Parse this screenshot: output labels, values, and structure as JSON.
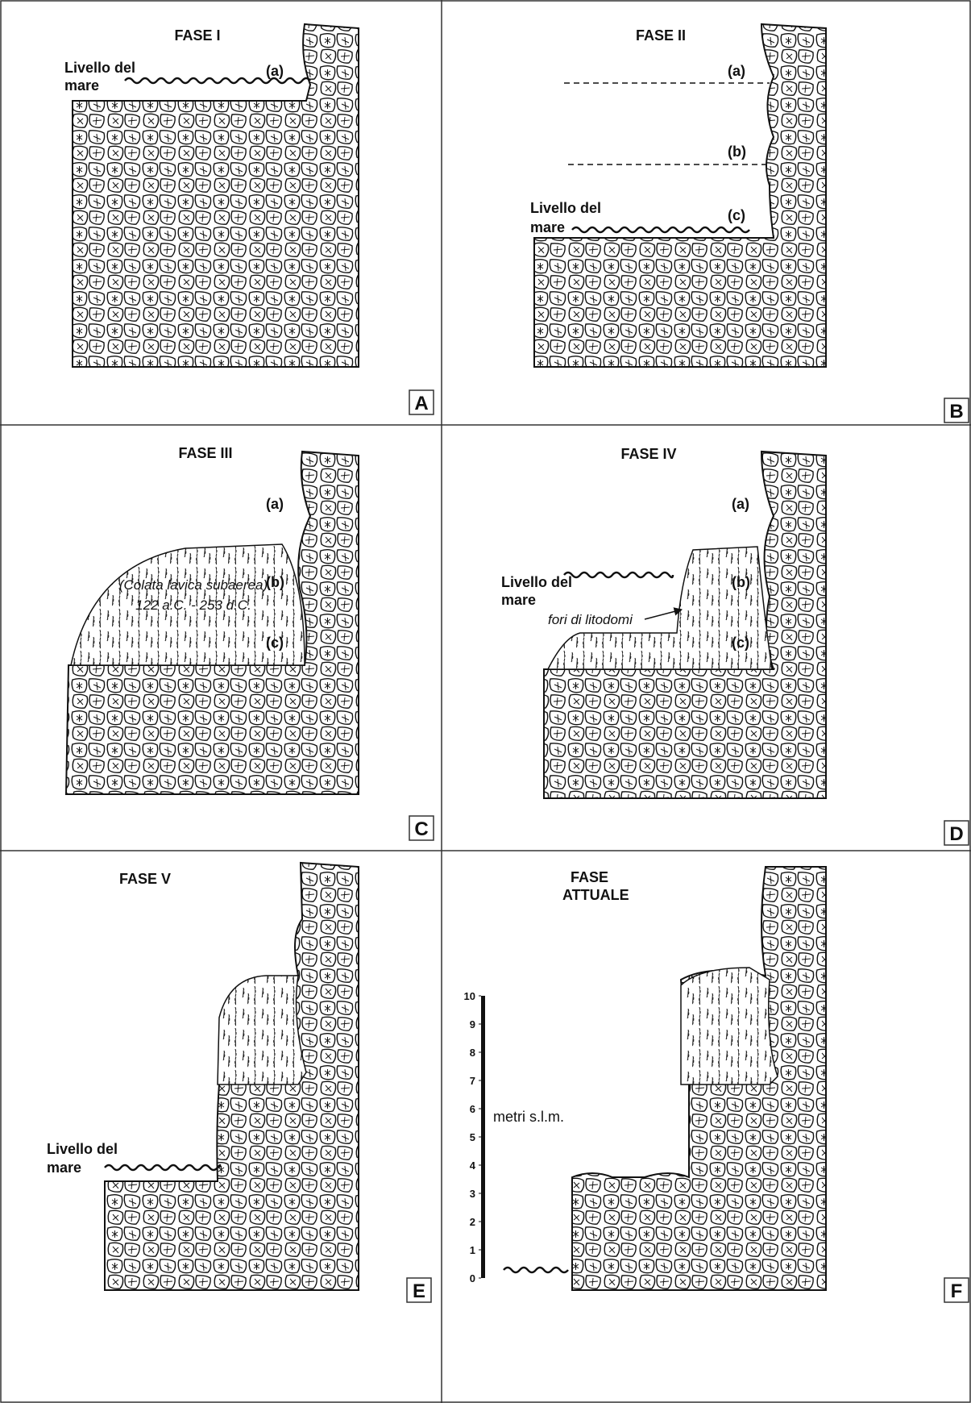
{
  "panels": [
    {
      "title": "FASE I",
      "sea_level": [
        "Livello del",
        "mare"
      ],
      "labels": [
        "(a)"
      ],
      "letter": "A"
    },
    {
      "title": "FASE II",
      "sea_level": [
        "Livello del",
        "mare"
      ],
      "labels": [
        "(a)",
        "(b)",
        "(c)"
      ],
      "letter": "B"
    },
    {
      "title": "FASE III",
      "labels": [
        "(a)",
        "(b)",
        "(c)"
      ],
      "lava_label": [
        "(Colata lavica subaerea)",
        "122 a.C. - 253 d.C."
      ],
      "letter": "C"
    },
    {
      "title": "FASE IV",
      "sea_level": [
        "Livello del",
        "mare"
      ],
      "labels": [
        "(a)",
        "(b)",
        "(c)"
      ],
      "annotation": "fori di litodomi",
      "letter": "D"
    },
    {
      "title": "FASE V",
      "sea_level": [
        "Livello del",
        "mare"
      ],
      "letter": "E"
    },
    {
      "title_lines": [
        "FASE",
        "ATTUALE"
      ],
      "scale": {
        "ticks": [
          0,
          1,
          2,
          3,
          4,
          5,
          6,
          7,
          8,
          9,
          10
        ],
        "label": "metri s.l.m."
      },
      "letter": "F"
    }
  ]
}
